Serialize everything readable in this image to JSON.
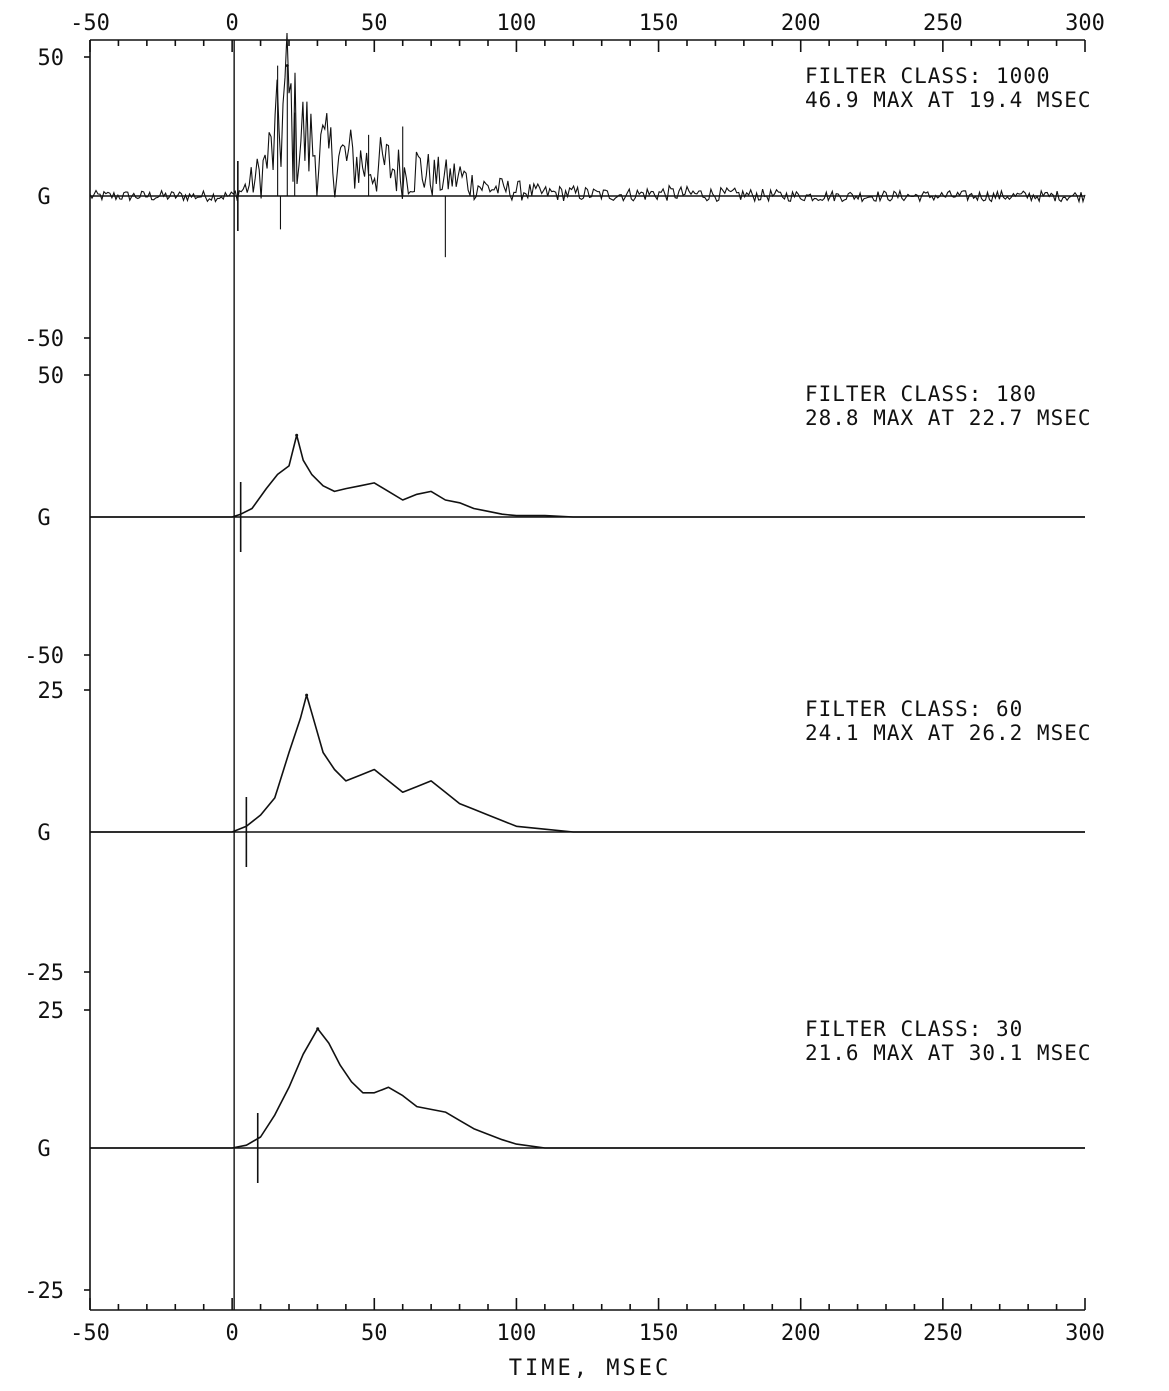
{
  "chart_data": {
    "type": "line",
    "xlabel": "TIME, MSEC",
    "xticks": [
      "-50",
      "0",
      "50",
      "100",
      "150",
      "200",
      "250",
      "300"
    ],
    "xlim": [
      -50,
      300
    ],
    "panels": [
      {
        "ylabel": "G",
        "ylim": [
          -50,
          50
        ],
        "ytick_labels": {
          "top": "50",
          "bottom": "-50"
        },
        "filter_label": "FILTER CLASS: 1000",
        "max_label": "46.9 MAX AT 19.4 MSEC",
        "max_value": 46.9,
        "max_time": 19.4,
        "marker_time": 2,
        "noisy": true,
        "x": [
          -50,
          -30,
          -10,
          0,
          5,
          10,
          15,
          19.4,
          22,
          26,
          30,
          35,
          40,
          45,
          50,
          55,
          60,
          65,
          70,
          75,
          80,
          85,
          90,
          100,
          110,
          120,
          130,
          140,
          150,
          175,
          200,
          250,
          300
        ],
        "y": [
          0,
          0,
          0,
          0,
          3,
          8,
          18,
          35,
          24,
          20,
          16,
          14,
          13,
          12,
          10,
          11,
          8,
          10,
          7,
          6,
          7,
          4,
          3,
          2,
          1,
          1,
          0.5,
          0.5,
          1,
          0.5,
          0,
          0,
          0
        ]
      },
      {
        "ylabel": "G",
        "ylim": [
          -50,
          50
        ],
        "ytick_labels": {
          "top": "50",
          "bottom": "-50"
        },
        "filter_label": "FILTER CLASS: 180",
        "max_label": "28.8 MAX AT 22.7 MSEC",
        "max_value": 28.8,
        "max_time": 22.7,
        "marker_time": 3,
        "noisy": false,
        "x": [
          -50,
          0,
          3,
          7,
          12,
          16,
          20,
          22.7,
          25,
          28,
          32,
          36,
          40,
          45,
          50,
          55,
          60,
          65,
          70,
          75,
          80,
          85,
          90,
          95,
          100,
          110,
          120,
          150,
          200,
          250,
          300
        ],
        "y": [
          0,
          0,
          1,
          3,
          10,
          15,
          18,
          28.8,
          20,
          15,
          11,
          9,
          10,
          11,
          12,
          9,
          6,
          8,
          9,
          6,
          5,
          3,
          2,
          1,
          0.5,
          0.5,
          0,
          0,
          0,
          0,
          0
        ]
      },
      {
        "ylabel": "G",
        "ylim": [
          -25,
          25
        ],
        "ytick_labels": {
          "top": "25",
          "bottom": "-25"
        },
        "filter_label": "FILTER CLASS: 60",
        "max_label": "24.1 MAX AT 26.2 MSEC",
        "max_value": 24.1,
        "max_time": 26.2,
        "marker_time": 5,
        "noisy": false,
        "x": [
          -50,
          0,
          5,
          10,
          15,
          20,
          24,
          26.2,
          28,
          32,
          36,
          40,
          45,
          50,
          55,
          60,
          65,
          70,
          75,
          80,
          85,
          90,
          95,
          100,
          110,
          120,
          150,
          200,
          250,
          300
        ],
        "y": [
          0,
          0,
          1,
          3,
          6,
          14,
          20,
          24.1,
          21,
          14,
          11,
          9,
          10,
          11,
          9,
          7,
          8,
          9,
          7,
          5,
          4,
          3,
          2,
          1,
          0.5,
          0,
          0,
          0,
          0,
          0
        ]
      },
      {
        "ylabel": "G",
        "ylim": [
          -25,
          25
        ],
        "ytick_labels": {
          "top": "25",
          "bottom": "-25"
        },
        "filter_label": "FILTER CLASS: 30",
        "max_label": "21.6 MAX AT 30.1 MSEC",
        "max_value": 21.6,
        "max_time": 30.1,
        "marker_time": 9,
        "noisy": false,
        "x": [
          -50,
          0,
          5,
          10,
          15,
          20,
          25,
          30.1,
          34,
          38,
          42,
          46,
          50,
          55,
          60,
          65,
          70,
          75,
          80,
          85,
          90,
          95,
          100,
          110,
          150,
          200,
          250,
          300
        ],
        "y": [
          0,
          0,
          0.5,
          2,
          6,
          11,
          17,
          21.6,
          19,
          15,
          12,
          10,
          10,
          11,
          9.5,
          7.5,
          7,
          6.5,
          5,
          3.5,
          2.5,
          1.5,
          0.7,
          0,
          0,
          0,
          0,
          0
        ]
      }
    ]
  }
}
